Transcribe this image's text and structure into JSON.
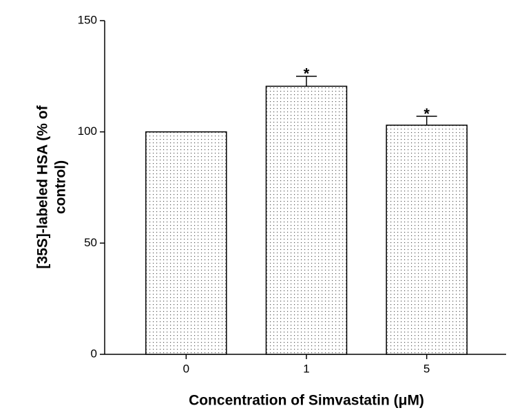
{
  "chart_data": {
    "type": "bar",
    "categories": [
      "0",
      "1",
      "5"
    ],
    "values": [
      100,
      120.5,
      103
    ],
    "errors": [
      0,
      4.5,
      4
    ],
    "annotations": [
      null,
      "*",
      "*"
    ],
    "color": "#ffffff",
    "xlabel": "Concentration of Simvastatin (μM)",
    "ylabel": [
      "[35S]-labeled HSA (% of",
      "control)"
    ],
    "ylim": [
      0,
      150
    ],
    "yticks": [
      0,
      50,
      100,
      150
    ],
    "grid": false
  }
}
